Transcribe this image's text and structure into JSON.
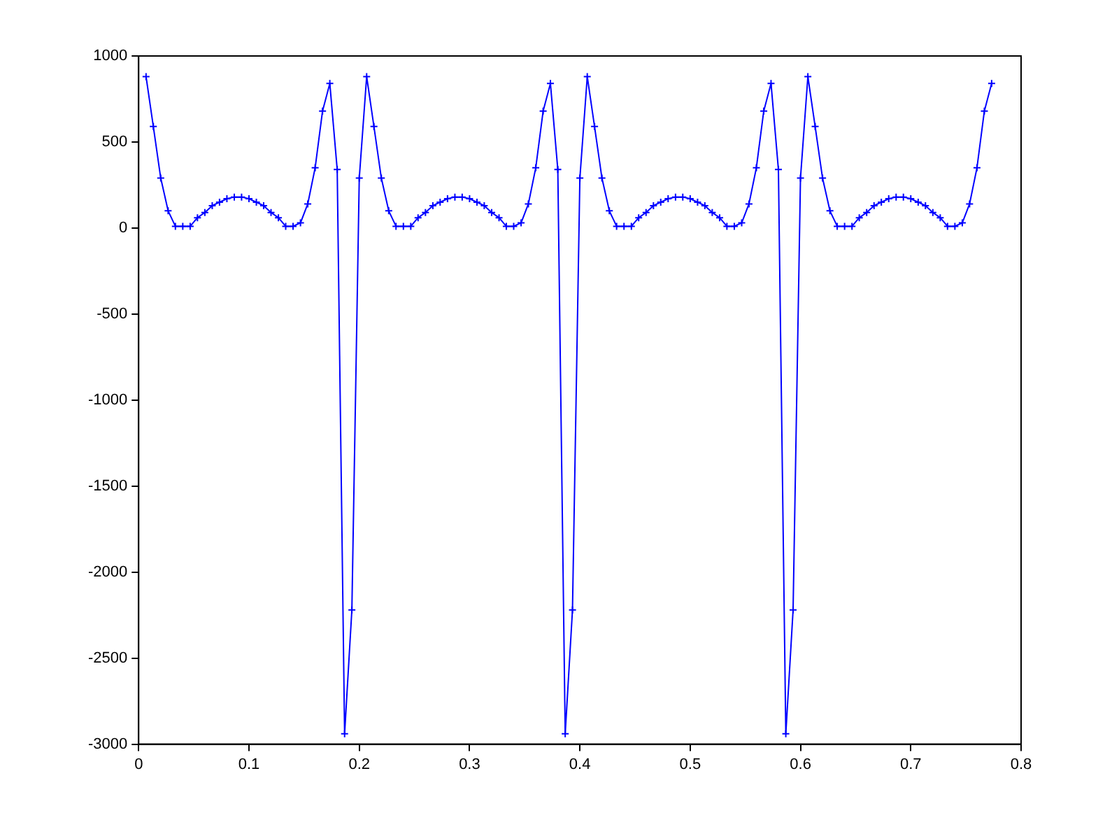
{
  "chart_data": {
    "type": "line",
    "x": [
      0.0067,
      0.0133,
      0.02,
      0.0267,
      0.0333,
      0.04,
      0.0467,
      0.0533,
      0.06,
      0.0667,
      0.0733,
      0.08,
      0.0867,
      0.0933,
      0.1,
      0.1067,
      0.1133,
      0.12,
      0.1267,
      0.1333,
      0.14,
      0.1467,
      0.1533,
      0.16,
      0.1667,
      0.1733,
      0.18,
      0.1867,
      0.1933,
      0.2,
      0.2067,
      0.2133,
      0.22,
      0.2267,
      0.2333,
      0.24,
      0.2467,
      0.2533,
      0.26,
      0.2667,
      0.2733,
      0.28,
      0.2867,
      0.2933,
      0.3,
      0.3067,
      0.3133,
      0.32,
      0.3267,
      0.3333,
      0.34,
      0.3467,
      0.3533,
      0.36,
      0.3667,
      0.3733,
      0.38,
      0.3867,
      0.3933,
      0.4,
      0.4067,
      0.4133,
      0.42,
      0.4267,
      0.4333,
      0.44,
      0.4467,
      0.4533,
      0.46,
      0.4667,
      0.4733,
      0.48,
      0.4867,
      0.4933,
      0.5,
      0.5067,
      0.5133,
      0.52,
      0.5267,
      0.5333,
      0.54,
      0.5467,
      0.5533,
      0.56,
      0.5667,
      0.5733,
      0.58,
      0.5867,
      0.5933,
      0.6,
      0.6067,
      0.6133,
      0.62,
      0.6267,
      0.6333,
      0.64,
      0.6467,
      0.6533,
      0.66,
      0.6667,
      0.6733,
      0.68,
      0.6867,
      0.6933,
      0.7,
      0.7067,
      0.7133,
      0.72,
      0.7267,
      0.7333,
      0.74,
      0.7467,
      0.7533,
      0.76,
      0.7667,
      0.7733
    ],
    "series": [
      {
        "color": "#0000ff",
        "values": [
          880,
          590,
          290,
          100,
          10,
          10,
          10,
          60,
          90,
          130,
          150,
          170,
          180,
          180,
          170,
          150,
          130,
          90,
          60,
          10,
          10,
          30,
          140,
          350,
          680,
          840,
          340,
          -2940,
          -2220,
          290,
          880,
          590,
          290,
          100,
          10,
          10,
          10,
          60,
          90,
          130,
          150,
          170,
          180,
          180,
          170,
          150,
          130,
          90,
          60,
          10,
          10,
          30,
          140,
          350,
          680,
          840,
          340,
          -2940,
          -2220,
          290,
          880,
          590,
          290,
          100,
          10,
          10,
          10,
          60,
          90,
          130,
          150,
          170,
          180,
          180,
          170,
          150,
          130,
          90,
          60,
          10,
          10,
          30,
          140,
          350,
          680,
          840,
          340,
          -2940,
          -2220,
          290,
          880,
          590,
          290,
          100,
          10,
          10,
          10,
          60,
          90,
          130,
          150,
          170,
          180,
          180,
          170,
          150,
          130,
          90,
          60,
          10,
          10,
          30,
          140,
          350,
          680,
          840
        ]
      }
    ],
    "xlim": [
      0,
      0.8
    ],
    "xticks": [
      0,
      0.1,
      0.2,
      0.3,
      0.4,
      0.5,
      0.6,
      0.7,
      0.8
    ],
    "ylim": [
      -3000,
      1000
    ],
    "yticks": [
      -3000,
      -2500,
      -2000,
      -1500,
      -1000,
      -500,
      0,
      500,
      1000
    ],
    "grid": false,
    "legend": false,
    "marker": "cross",
    "line_style": "solid"
  }
}
